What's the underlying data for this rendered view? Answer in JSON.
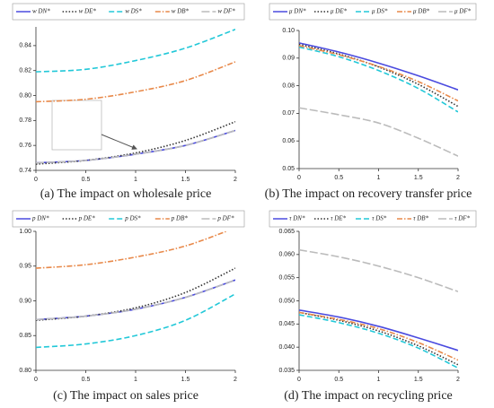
{
  "chart_data": [
    {
      "type": "line",
      "caption": "(a) The impact on wholesale price",
      "x": [
        0,
        0.5,
        1,
        1.5,
        2
      ],
      "xlim": [
        0,
        2
      ],
      "xticks": [
        0,
        0.5,
        1,
        1.5,
        2
      ],
      "ylim": [
        0.74,
        0.855
      ],
      "yticks": [
        0.74,
        0.76,
        0.78,
        {
          "value": 0.8,
          "label": "0.80"
        },
        0.82,
        0.84
      ],
      "series": [
        {
          "name": "w DN*",
          "color": "#4a4adf",
          "dash": "solid",
          "values": [
            0.746,
            0.748,
            0.753,
            0.76,
            0.772
          ]
        },
        {
          "name": "w DE*",
          "color": "#333333",
          "dash": "dotted",
          "values": [
            0.745,
            0.748,
            0.754,
            0.764,
            0.779
          ]
        },
        {
          "name": "w DS*",
          "color": "#22c8d8",
          "dash": "dashed",
          "values": [
            0.819,
            0.821,
            0.828,
            0.838,
            0.853
          ]
        },
        {
          "name": "w DB*",
          "color": "#e8894a",
          "dash": "dashdot",
          "values": [
            0.795,
            0.797,
            0.803,
            0.812,
            0.827
          ]
        },
        {
          "name": "w DF*",
          "color": "#bbbbbb",
          "dash": "longdash",
          "values": [
            0.746,
            0.748,
            0.753,
            0.76,
            0.772
          ]
        }
      ]
    },
    {
      "type": "line",
      "caption": "(b) The impact on recovery transfer price",
      "x": [
        0,
        0.5,
        1,
        1.5,
        2
      ],
      "xlim": [
        0,
        2
      ],
      "xticks": [
        0,
        0.5,
        1,
        1.5,
        2
      ],
      "ylim": [
        0.05,
        0.1
      ],
      "yticks": [
        0.05,
        0.06,
        0.07,
        0.08,
        0.09,
        {
          "value": 0.1,
          "label": "0.10"
        }
      ],
      "series": [
        {
          "name": "μ DN*",
          "color": "#4a4adf",
          "dash": "solid",
          "values": [
            0.0955,
            0.0922,
            0.0882,
            0.0836,
            0.0785
          ]
        },
        {
          "name": "μ DE*",
          "color": "#333333",
          "dash": "dotted",
          "values": [
            0.095,
            0.0915,
            0.0868,
            0.0805,
            0.0725
          ]
        },
        {
          "name": "μ DS*",
          "color": "#22c8d8",
          "dash": "dashed",
          "values": [
            0.094,
            0.0905,
            0.0855,
            0.079,
            0.0705
          ]
        },
        {
          "name": "μ DB*",
          "color": "#e8894a",
          "dash": "dashdot",
          "values": [
            0.0945,
            0.0912,
            0.087,
            0.0815,
            0.0745
          ]
        },
        {
          "name": "μ DF*",
          "color": "#bbbbbb",
          "dash": "longdash",
          "values": [
            0.072,
            0.0695,
            0.0665,
            0.061,
            0.0545
          ]
        }
      ]
    },
    {
      "type": "line",
      "caption": "(c) The impact on sales price",
      "x": [
        0,
        0.5,
        1,
        1.5,
        2
      ],
      "xlim": [
        0,
        2
      ],
      "xticks": [
        0,
        0.5,
        1,
        1.5,
        2
      ],
      "ylim": [
        0.8,
        1.0
      ],
      "yticks": [
        {
          "value": 0.8,
          "label": "0.80"
        },
        0.85,
        {
          "value": 0.9,
          "label": "0.90"
        },
        0.95,
        {
          "value": 1.0,
          "label": "1.00"
        }
      ],
      "series": [
        {
          "name": "p DN*",
          "color": "#4a4adf",
          "dash": "solid",
          "values": [
            0.873,
            0.878,
            0.888,
            0.905,
            0.93
          ]
        },
        {
          "name": "p DE*",
          "color": "#333333",
          "dash": "dotted",
          "values": [
            0.872,
            0.878,
            0.89,
            0.912,
            0.947
          ]
        },
        {
          "name": "p DS*",
          "color": "#22c8d8",
          "dash": "dashed",
          "values": [
            0.833,
            0.838,
            0.85,
            0.872,
            0.91
          ]
        },
        {
          "name": "p DB*",
          "color": "#e8894a",
          "dash": "dashdot",
          "values": [
            0.947,
            0.952,
            0.963,
            0.979,
            1.005
          ]
        },
        {
          "name": "p DF*",
          "color": "#bbbbbb",
          "dash": "longdash",
          "values": [
            0.873,
            0.878,
            0.888,
            0.905,
            0.93
          ]
        }
      ]
    },
    {
      "type": "line",
      "caption": "(d) The impact on recycling price",
      "x": [
        0,
        0.5,
        1,
        1.5,
        2
      ],
      "xlim": [
        0,
        2
      ],
      "xticks": [
        0,
        0.5,
        1,
        1.5,
        2
      ],
      "ylim": [
        0.035,
        0.065
      ],
      "yticks": [
        0.035,
        {
          "value": 0.04,
          "label": "0.040"
        },
        0.045,
        {
          "value": 0.05,
          "label": "0.050"
        },
        0.055,
        {
          "value": 0.06,
          "label": "0.060"
        },
        0.065
      ],
      "series": [
        {
          "name": "τ DN*",
          "color": "#4a4adf",
          "dash": "solid",
          "values": [
            0.048,
            0.0465,
            0.0445,
            0.042,
            0.0393
          ]
        },
        {
          "name": "τ DE*",
          "color": "#333333",
          "dash": "dotted",
          "values": [
            0.0475,
            0.0458,
            0.0435,
            0.0403,
            0.0362
          ]
        },
        {
          "name": "τ DS*",
          "color": "#22c8d8",
          "dash": "dashed",
          "values": [
            0.047,
            0.0453,
            0.043,
            0.0398,
            0.0355
          ]
        },
        {
          "name": "τ DB*",
          "color": "#e8894a",
          "dash": "dashdot",
          "values": [
            0.0475,
            0.046,
            0.044,
            0.041,
            0.0372
          ]
        },
        {
          "name": "τ DF*",
          "color": "#bbbbbb",
          "dash": "longdash",
          "values": [
            0.061,
            0.0595,
            0.0575,
            0.055,
            0.052
          ]
        }
      ]
    }
  ]
}
